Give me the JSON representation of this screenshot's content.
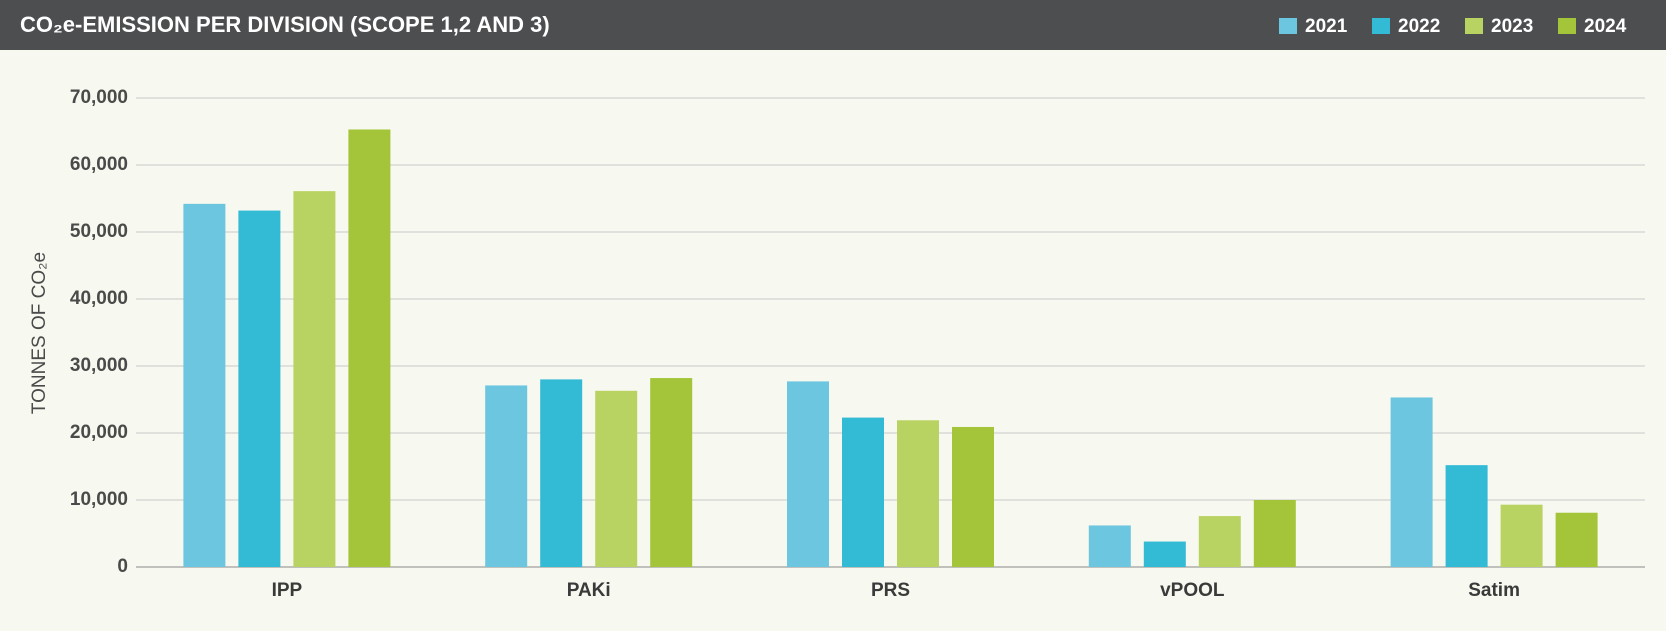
{
  "chart_data": {
    "type": "bar",
    "title": "CO₂e-EMISSION PER DIVISION (SCOPE 1,2 AND 3)",
    "y_label": "TONNES OF CO₂e",
    "categories": [
      "IPP",
      "PAKi",
      "PRS",
      "vPOOL",
      "Satim"
    ],
    "series": [
      {
        "name": "2021",
        "color": "#6cc6e0",
        "values": [
          54200,
          27100,
          27700,
          6200,
          25300
        ]
      },
      {
        "name": "2022",
        "color": "#33bad5",
        "values": [
          53200,
          28000,
          22300,
          3800,
          15200
        ]
      },
      {
        "name": "2023",
        "color": "#b9d362",
        "values": [
          56100,
          26300,
          21900,
          7600,
          9300
        ]
      },
      {
        "name": "2024",
        "color": "#a4c53a",
        "values": [
          65300,
          28200,
          20900,
          10000,
          8100
        ]
      }
    ],
    "ylim": [
      0,
      70000
    ],
    "yticks": [
      0,
      {
        "value": 10000,
        "label": "10,000"
      },
      {
        "value": 20000,
        "label": "20,000"
      },
      {
        "value": 30000,
        "label": "30,000"
      },
      {
        "value": 40000,
        "label": "40,000"
      },
      {
        "value": 50000,
        "label": "50,000"
      },
      {
        "value": 60000,
        "label": "60,000"
      },
      {
        "value": 70000,
        "label": "70,000"
      }
    ],
    "grid": true,
    "legend": "top-right"
  }
}
